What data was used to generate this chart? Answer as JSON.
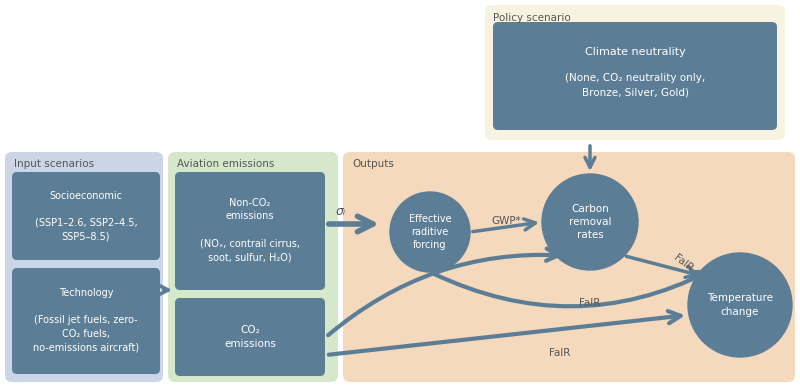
{
  "bg_color": "#ffffff",
  "policy_bg": "#f7f3e0",
  "input_bg": "#ccd5e5",
  "aviation_bg": "#d5e8cc",
  "output_bg": "#f5d9bc",
  "box_color": "#5b7d96",
  "arrow_color": "#5b7d96",
  "text_color": "#ffffff",
  "label_color": "#555555",
  "policy_label": "Policy scenario",
  "input_label": "Input scenarios",
  "aviation_label": "Aviation emissions",
  "output_label": "Outputs",
  "climate_neutrality_title": "Climate neutrality",
  "climate_neutrality_sub": "(None, CO₂ neutrality only,\nBronze, Silver, Gold)",
  "socioeconomic_text": "Socioeconomic\n\n(SSP1–2.6, SSP2–4.5,\nSSP5–8.5)",
  "technology_text": "Technology\n\n(Fossil jet fuels, zero-\nCO₂ fuels,\nno-emissions aircraft)",
  "nonco2_text": "Non-CO₂\nemissions\n\n(NOₓ, contrail cirrus,\nsoot, sulfur, H₂O)",
  "co2_text": "CO₂\nemissions",
  "erf_text": "Effective\nraditive\nforcing",
  "carbon_text": "Carbon\nremoval\nrates",
  "temp_text": "Temperature\nchange",
  "sigma_label": "σᵢ",
  "gwp_label": "GWP*",
  "fair_label1": "FaIR",
  "fair_label2": "FaIR",
  "fair_label3": "FaIR"
}
